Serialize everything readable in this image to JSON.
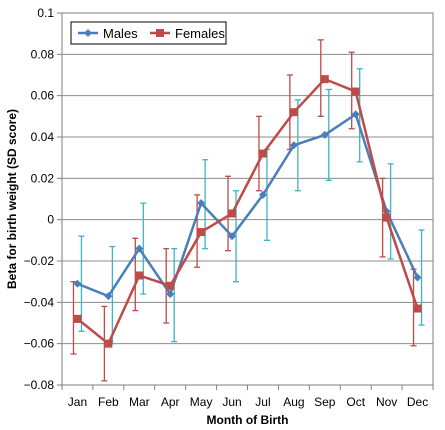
{
  "chart_data": {
    "type": "line",
    "xlabel": "Month of Birth",
    "ylabel": "Beta for birth weight (SD score)",
    "categories": [
      "Jan",
      "Feb",
      "Mar",
      "Apr",
      "May",
      "Jun",
      "Jul",
      "Aug",
      "Sep",
      "Oct",
      "Nov",
      "Dec"
    ],
    "ylim": [
      -0.08,
      0.1
    ],
    "yticks": [
      -0.08,
      -0.06,
      -0.04,
      -0.02,
      0,
      0.02,
      0.04,
      0.06,
      0.08,
      0.1
    ],
    "ytick_labels": [
      "−0.08",
      "−0.06",
      "−0.04",
      "−0.02",
      "0",
      "0.02",
      "0.04",
      "0.06",
      "0.08",
      "0.1"
    ],
    "grid": "horizontal",
    "legend_position": "top-left",
    "series": [
      {
        "name": "Males",
        "color": "#4a7ebb",
        "error_color": "#3fb3c4",
        "marker": "diamond",
        "values": [
          -0.031,
          -0.037,
          -0.014,
          -0.036,
          0.008,
          -0.008,
          0.012,
          0.036,
          0.041,
          0.051,
          0.004,
          -0.028
        ],
        "lower": [
          -0.054,
          -0.06,
          -0.036,
          -0.059,
          -0.014,
          -0.03,
          -0.01,
          0.014,
          0.019,
          0.028,
          -0.019,
          -0.051
        ],
        "upper": [
          -0.008,
          -0.013,
          0.008,
          -0.014,
          0.029,
          0.014,
          0.034,
          0.058,
          0.063,
          0.073,
          0.027,
          -0.005
        ]
      },
      {
        "name": "Females",
        "color": "#be4b48",
        "error_color": "#be4b48",
        "marker": "square",
        "values": [
          -0.048,
          -0.06,
          -0.027,
          -0.032,
          -0.006,
          0.003,
          0.032,
          0.052,
          0.068,
          0.062,
          0.001,
          -0.043
        ],
        "lower": [
          -0.065,
          -0.078,
          -0.044,
          -0.05,
          -0.023,
          -0.015,
          0.014,
          0.034,
          0.05,
          0.044,
          -0.018,
          -0.061
        ],
        "upper": [
          -0.03,
          -0.042,
          -0.009,
          -0.014,
          0.012,
          0.021,
          0.05,
          0.07,
          0.087,
          0.081,
          0.02,
          -0.024
        ]
      }
    ]
  }
}
